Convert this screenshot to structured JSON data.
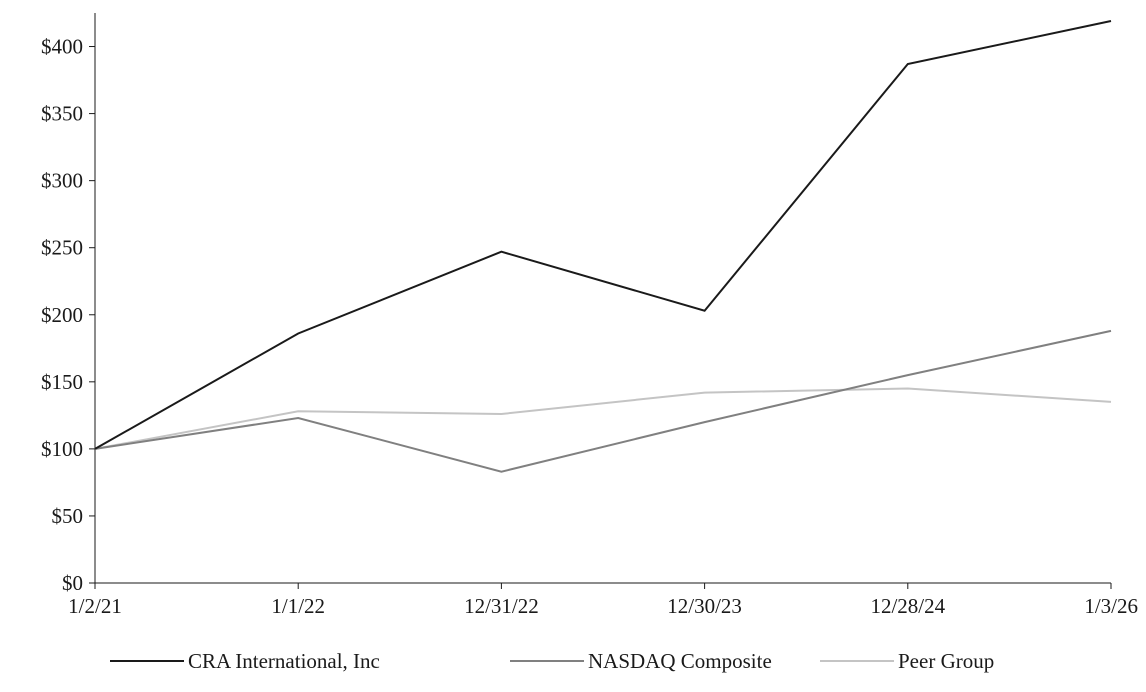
{
  "chart_data": {
    "type": "line",
    "title": "",
    "xlabel": "",
    "ylabel": "",
    "categories": [
      "1/2/21",
      "1/1/22",
      "12/31/22",
      "12/30/23",
      "12/28/24",
      "1/3/26"
    ],
    "y_ticks": [
      "$0",
      "$50",
      "$100",
      "$150",
      "$200",
      "$250",
      "$300",
      "$350",
      "$400"
    ],
    "y_tick_values": [
      0,
      50,
      100,
      150,
      200,
      250,
      300,
      350,
      400
    ],
    "ylim": [
      0,
      425
    ],
    "grid": false,
    "legend_position": "bottom",
    "series": [
      {
        "name": "CRA International, Inc",
        "color": "#1a1a1a",
        "values": [
          100,
          186,
          247,
          203,
          387,
          419
        ]
      },
      {
        "name": "NASDAQ Composite",
        "color": "#808080",
        "values": [
          100,
          123,
          83,
          120,
          155,
          188
        ]
      },
      {
        "name": "Peer Group",
        "color": "#c4c4c4",
        "values": [
          100,
          128,
          126,
          142,
          145,
          135
        ]
      }
    ]
  }
}
